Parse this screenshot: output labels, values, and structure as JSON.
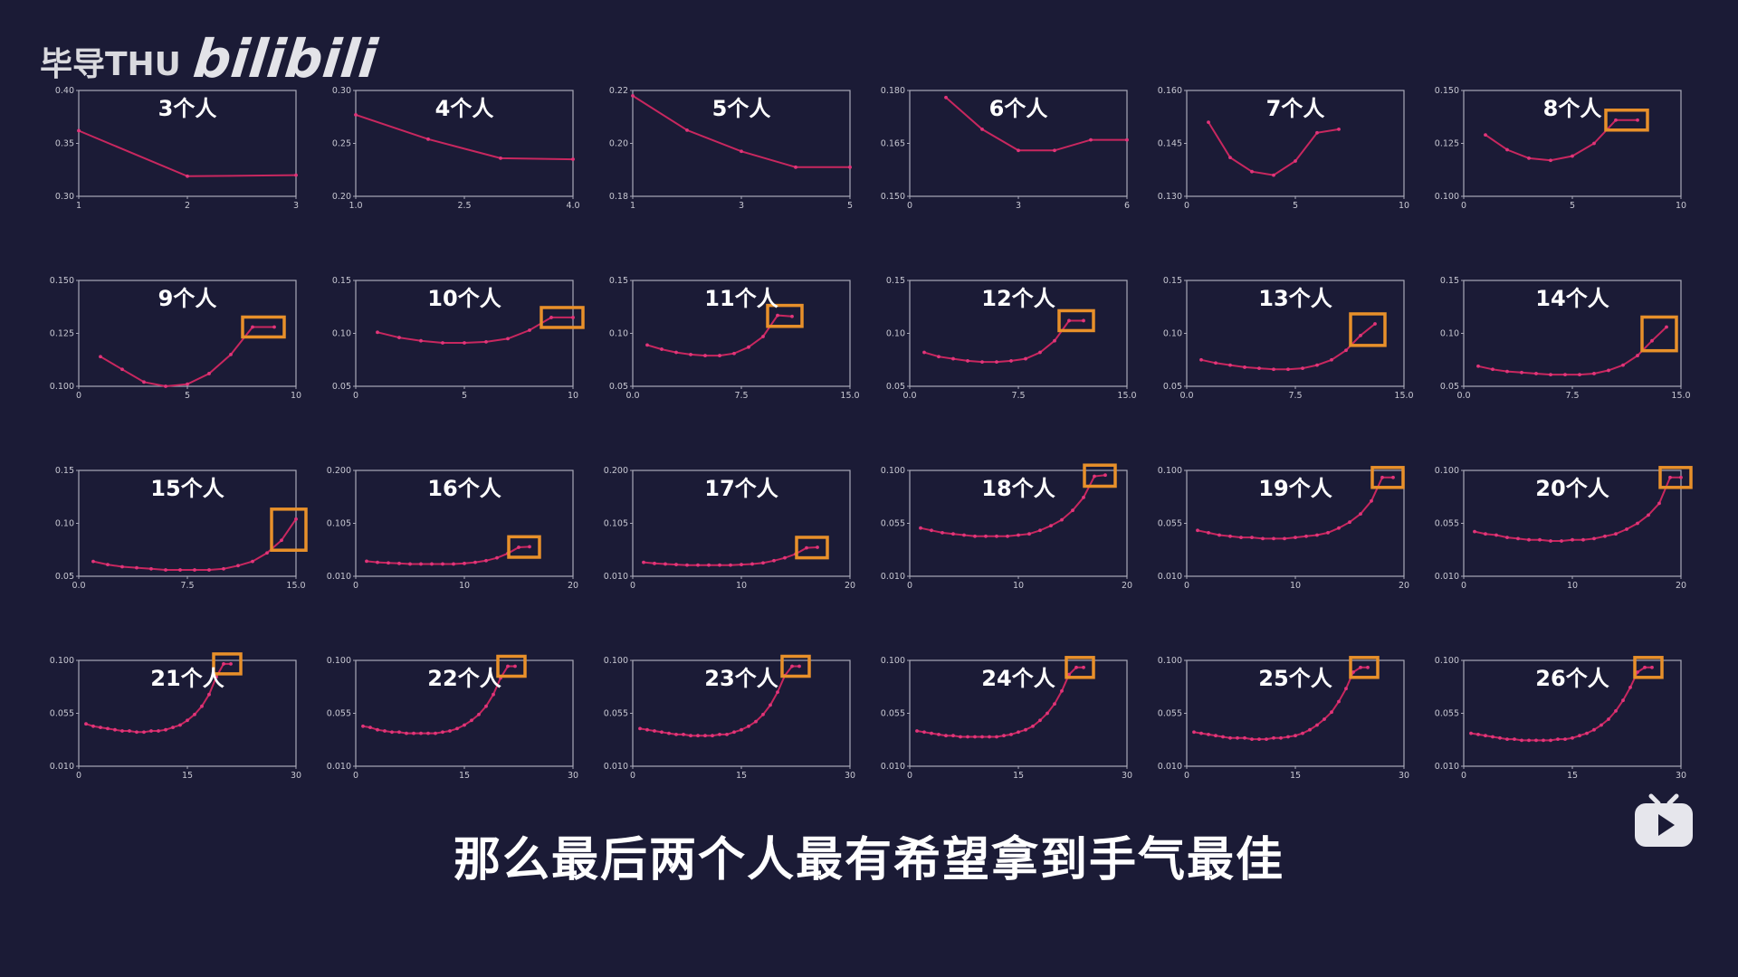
{
  "watermark": {
    "channel": "毕导THU",
    "logo": "bilibili"
  },
  "caption": "那么最后两个人最有希望拿到手气最佳",
  "colors": {
    "background": "#1b1b36",
    "line": "#c8275f",
    "highlight_box": "#e8902a",
    "axes": "#a9a9b8",
    "text": "#ffffff"
  },
  "icons": {
    "corner": "bilibili-tv-play-icon"
  },
  "chart_data": [
    {
      "type": "line",
      "title": "3个人",
      "x": [
        1,
        2,
        3
      ],
      "y": [
        0.362,
        0.319,
        0.32
      ],
      "xlim": [
        1,
        3
      ],
      "ylim": [
        0.3,
        0.4
      ],
      "xticks": [
        "1",
        "2",
        "3"
      ],
      "yticks": [
        "0.30",
        "0.35",
        "0.40"
      ],
      "highlight": null
    },
    {
      "type": "line",
      "title": "4个人",
      "x": [
        1,
        2,
        3,
        4
      ],
      "y": [
        0.277,
        0.254,
        0.236,
        0.235
      ],
      "xlim": [
        1,
        4
      ],
      "ylim": [
        0.2,
        0.3
      ],
      "xticks": [
        "1.0",
        "2.5",
        "4.0"
      ],
      "yticks": [
        "0.20",
        "0.25",
        "0.30"
      ],
      "highlight": null
    },
    {
      "type": "line",
      "title": "5个人",
      "x": [
        1,
        2,
        3,
        4,
        5
      ],
      "y": [
        0.218,
        0.205,
        0.197,
        0.191,
        0.191
      ],
      "xlim": [
        1,
        5
      ],
      "ylim": [
        0.18,
        0.22
      ],
      "xticks": [
        "1",
        "3",
        "5"
      ],
      "yticks": [
        "0.18",
        "0.20",
        "0.22"
      ],
      "highlight": null
    },
    {
      "type": "line",
      "title": "6个人",
      "x": [
        1,
        2,
        3,
        4,
        5,
        6
      ],
      "y": [
        0.178,
        0.169,
        0.163,
        0.163,
        0.166,
        0.166
      ],
      "xlim": [
        0,
        6
      ],
      "ylim": [
        0.15,
        0.18
      ],
      "xticks": [
        "0",
        "3",
        "6"
      ],
      "yticks": [
        "0.150",
        "0.165",
        "0.180"
      ],
      "highlight": null
    },
    {
      "type": "line",
      "title": "7个人",
      "x": [
        1,
        2,
        3,
        4,
        5,
        6,
        7
      ],
      "y": [
        0.151,
        0.141,
        0.137,
        0.136,
        0.14,
        0.148,
        0.149
      ],
      "xlim": [
        0,
        10
      ],
      "ylim": [
        0.13,
        0.16
      ],
      "xticks": [
        "0",
        "5",
        "10"
      ],
      "yticks": [
        "0.130",
        "0.145",
        "0.160"
      ],
      "highlight": null
    },
    {
      "type": "line",
      "title": "8个人",
      "x": [
        1,
        2,
        3,
        4,
        5,
        6,
        7,
        8
      ],
      "y": [
        0.129,
        0.122,
        0.118,
        0.117,
        0.119,
        0.125,
        0.136,
        0.136
      ],
      "xlim": [
        0,
        10
      ],
      "ylim": [
        0.1,
        0.15
      ],
      "xticks": [
        "0",
        "5",
        "10"
      ],
      "yticks": [
        "0.100",
        "0.125",
        "0.150"
      ],
      "highlight": [
        7,
        8
      ]
    },
    {
      "type": "line",
      "title": "9个人",
      "x": [
        1,
        2,
        3,
        4,
        5,
        6,
        7,
        8,
        9
      ],
      "y": [
        0.114,
        0.108,
        0.102,
        0.1,
        0.101,
        0.106,
        0.115,
        0.128,
        0.128
      ],
      "xlim": [
        0,
        10
      ],
      "ylim": [
        0.1,
        0.15
      ],
      "xticks": [
        "0",
        "5",
        "10"
      ],
      "yticks": [
        "0.100",
        "0.125",
        "0.150"
      ],
      "highlight": [
        8,
        9
      ]
    },
    {
      "type": "line",
      "title": "10个人",
      "x": [
        1,
        2,
        3,
        4,
        5,
        6,
        7,
        8,
        9,
        10
      ],
      "y": [
        0.101,
        0.096,
        0.093,
        0.091,
        0.091,
        0.092,
        0.095,
        0.103,
        0.115,
        0.115
      ],
      "xlim": [
        0,
        10
      ],
      "ylim": [
        0.05,
        0.15
      ],
      "xticks": [
        "0",
        "5",
        "10"
      ],
      "yticks": [
        "0.05",
        "0.10",
        "0.15"
      ],
      "highlight": [
        9,
        10
      ]
    },
    {
      "type": "line",
      "title": "11个人",
      "x": [
        1,
        2,
        3,
        4,
        5,
        6,
        7,
        8,
        9,
        10,
        11
      ],
      "y": [
        0.089,
        0.085,
        0.082,
        0.08,
        0.079,
        0.079,
        0.081,
        0.087,
        0.097,
        0.117,
        0.116
      ],
      "xlim": [
        0,
        15
      ],
      "ylim": [
        0.05,
        0.15
      ],
      "xticks": [
        "0.0",
        "7.5",
        "15.0"
      ],
      "yticks": [
        "0.05",
        "0.10",
        "0.15"
      ],
      "highlight": [
        10,
        11
      ]
    },
    {
      "type": "line",
      "title": "12个人",
      "x": [
        1,
        2,
        3,
        4,
        5,
        6,
        7,
        8,
        9,
        10,
        11,
        12
      ],
      "y": [
        0.082,
        0.078,
        0.076,
        0.074,
        0.073,
        0.073,
        0.074,
        0.076,
        0.082,
        0.093,
        0.112,
        0.112
      ],
      "xlim": [
        0,
        15
      ],
      "ylim": [
        0.05,
        0.15
      ],
      "xticks": [
        "0.0",
        "7.5",
        "15.0"
      ],
      "yticks": [
        "0.05",
        "0.10",
        "0.15"
      ],
      "highlight": [
        11,
        12
      ]
    },
    {
      "type": "line",
      "title": "13个人",
      "x": [
        1,
        2,
        3,
        4,
        5,
        6,
        7,
        8,
        9,
        10,
        11,
        12,
        13
      ],
      "y": [
        0.075,
        0.072,
        0.07,
        0.068,
        0.067,
        0.066,
        0.066,
        0.067,
        0.07,
        0.075,
        0.084,
        0.098,
        0.109
      ],
      "xlim": [
        0,
        15
      ],
      "ylim": [
        0.05,
        0.15
      ],
      "xticks": [
        "0.0",
        "7.5",
        "15.0"
      ],
      "yticks": [
        "0.05",
        "0.10",
        "0.15"
      ],
      "highlight": [
        12,
        13
      ]
    },
    {
      "type": "line",
      "title": "14个人",
      "x": [
        1,
        2,
        3,
        4,
        5,
        6,
        7,
        8,
        9,
        10,
        11,
        12,
        13,
        14
      ],
      "y": [
        0.069,
        0.066,
        0.064,
        0.063,
        0.062,
        0.061,
        0.061,
        0.061,
        0.062,
        0.065,
        0.07,
        0.079,
        0.093,
        0.106
      ],
      "xlim": [
        0,
        15
      ],
      "ylim": [
        0.05,
        0.15
      ],
      "xticks": [
        "0.0",
        "7.5",
        "15.0"
      ],
      "yticks": [
        "0.05",
        "0.10",
        "0.15"
      ],
      "highlight": [
        13,
        14
      ]
    },
    {
      "type": "line",
      "title": "15个人",
      "x": [
        1,
        2,
        3,
        4,
        5,
        6,
        7,
        8,
        9,
        10,
        11,
        12,
        13,
        14,
        15
      ],
      "y": [
        0.064,
        0.061,
        0.059,
        0.058,
        0.057,
        0.056,
        0.056,
        0.056,
        0.056,
        0.057,
        0.06,
        0.064,
        0.072,
        0.084,
        0.104
      ],
      "xlim": [
        0,
        15
      ],
      "ylim": [
        0.05,
        0.15
      ],
      "xticks": [
        "0.0",
        "7.5",
        "15.0"
      ],
      "yticks": [
        "0.05",
        "0.10",
        "0.15"
      ],
      "highlight": [
        14,
        15
      ]
    },
    {
      "type": "line",
      "title": "16个人",
      "x": [
        1,
        2,
        3,
        4,
        5,
        6,
        7,
        8,
        9,
        10,
        11,
        12,
        13,
        14,
        15,
        16
      ],
      "y": [
        0.037,
        0.035,
        0.034,
        0.033,
        0.032,
        0.032,
        0.032,
        0.032,
        0.032,
        0.033,
        0.035,
        0.038,
        0.043,
        0.051,
        0.062,
        0.063
      ],
      "xlim": [
        0,
        20
      ],
      "ylim": [
        0.01,
        0.2
      ],
      "xticks": [
        "0",
        "10",
        "20"
      ],
      "yticks": [
        "0.010",
        "0.105",
        "0.200"
      ],
      "highlight": [
        15,
        16
      ]
    },
    {
      "type": "line",
      "title": "17个人",
      "x": [
        1,
        2,
        3,
        4,
        5,
        6,
        7,
        8,
        9,
        10,
        11,
        12,
        13,
        14,
        15,
        16,
        17
      ],
      "y": [
        0.035,
        0.033,
        0.032,
        0.031,
        0.03,
        0.03,
        0.03,
        0.03,
        0.03,
        0.031,
        0.032,
        0.034,
        0.038,
        0.043,
        0.05,
        0.061,
        0.062
      ],
      "xlim": [
        0,
        20
      ],
      "ylim": [
        0.01,
        0.2
      ],
      "xticks": [
        "0",
        "10",
        "20"
      ],
      "yticks": [
        "0.010",
        "0.105",
        "0.200"
      ],
      "highlight": [
        16,
        17
      ]
    },
    {
      "type": "line",
      "title": "18个人",
      "x": [
        1,
        2,
        3,
        4,
        5,
        6,
        7,
        8,
        9,
        10,
        11,
        12,
        13,
        14,
        15,
        16,
        17,
        18
      ],
      "y": [
        0.051,
        0.049,
        0.047,
        0.046,
        0.045,
        0.044,
        0.044,
        0.044,
        0.044,
        0.045,
        0.046,
        0.049,
        0.053,
        0.058,
        0.066,
        0.077,
        0.095,
        0.096
      ],
      "xlim": [
        0,
        20
      ],
      "ylim": [
        0.01,
        0.1
      ],
      "xticks": [
        "0",
        "10",
        "20"
      ],
      "yticks": [
        "0.010",
        "0.055",
        "0.100"
      ],
      "highlight": [
        17,
        18
      ]
    },
    {
      "type": "line",
      "title": "19个人",
      "x": [
        1,
        2,
        3,
        4,
        5,
        6,
        7,
        8,
        9,
        10,
        11,
        12,
        13,
        14,
        15,
        16,
        17,
        18,
        19
      ],
      "y": [
        0.049,
        0.047,
        0.045,
        0.044,
        0.043,
        0.043,
        0.042,
        0.042,
        0.042,
        0.043,
        0.044,
        0.045,
        0.047,
        0.051,
        0.056,
        0.063,
        0.074,
        0.094,
        0.094
      ],
      "xlim": [
        0,
        20
      ],
      "ylim": [
        0.01,
        0.1
      ],
      "xticks": [
        "0",
        "10",
        "20"
      ],
      "yticks": [
        "0.010",
        "0.055",
        "0.100"
      ],
      "highlight": [
        18,
        19
      ]
    },
    {
      "type": "line",
      "title": "20个人",
      "x": [
        1,
        2,
        3,
        4,
        5,
        6,
        7,
        8,
        9,
        10,
        11,
        12,
        13,
        14,
        15,
        16,
        17,
        18,
        19,
        20
      ],
      "y": [
        0.048,
        0.046,
        0.045,
        0.043,
        0.042,
        0.041,
        0.041,
        0.04,
        0.04,
        0.041,
        0.041,
        0.042,
        0.044,
        0.046,
        0.05,
        0.055,
        0.062,
        0.072,
        0.094,
        0.094
      ],
      "xlim": [
        0,
        20
      ],
      "ylim": [
        0.01,
        0.1
      ],
      "xticks": [
        "0",
        "10",
        "20"
      ],
      "yticks": [
        "0.010",
        "0.055",
        "0.100"
      ],
      "highlight": [
        19,
        20
      ]
    },
    {
      "type": "line",
      "title": "21个人",
      "x": [
        1,
        2,
        3,
        4,
        5,
        6,
        7,
        8,
        9,
        10,
        11,
        12,
        13,
        14,
        15,
        16,
        17,
        18,
        19,
        20,
        21
      ],
      "y": [
        0.046,
        0.044,
        0.043,
        0.042,
        0.041,
        0.04,
        0.04,
        0.039,
        0.039,
        0.04,
        0.04,
        0.041,
        0.043,
        0.045,
        0.049,
        0.054,
        0.061,
        0.071,
        0.086,
        0.097,
        0.097
      ],
      "xlim": [
        0,
        30
      ],
      "ylim": [
        0.01,
        0.1
      ],
      "xticks": [
        "0",
        "15",
        "30"
      ],
      "yticks": [
        "0.010",
        "0.055",
        "0.100"
      ],
      "highlight": [
        20,
        21
      ]
    },
    {
      "type": "line",
      "title": "22个人",
      "x": [
        1,
        2,
        3,
        4,
        5,
        6,
        7,
        8,
        9,
        10,
        11,
        12,
        13,
        14,
        15,
        16,
        17,
        18,
        19,
        20,
        21,
        22
      ],
      "y": [
        0.044,
        0.043,
        0.041,
        0.04,
        0.039,
        0.039,
        0.038,
        0.038,
        0.038,
        0.038,
        0.038,
        0.039,
        0.04,
        0.042,
        0.045,
        0.049,
        0.054,
        0.061,
        0.071,
        0.085,
        0.095,
        0.095
      ],
      "xlim": [
        0,
        30
      ],
      "ylim": [
        0.01,
        0.1
      ],
      "xticks": [
        "0",
        "15",
        "30"
      ],
      "yticks": [
        "0.010",
        "0.055",
        "0.100"
      ],
      "highlight": [
        21,
        22
      ]
    },
    {
      "type": "line",
      "title": "23个人",
      "x": [
        1,
        2,
        3,
        4,
        5,
        6,
        7,
        8,
        9,
        10,
        11,
        12,
        13,
        14,
        15,
        16,
        17,
        18,
        19,
        20,
        21,
        22,
        23
      ],
      "y": [
        0.042,
        0.041,
        0.04,
        0.039,
        0.038,
        0.037,
        0.037,
        0.036,
        0.036,
        0.036,
        0.036,
        0.037,
        0.037,
        0.039,
        0.041,
        0.044,
        0.048,
        0.054,
        0.062,
        0.073,
        0.087,
        0.095,
        0.095
      ],
      "xlim": [
        0,
        30
      ],
      "ylim": [
        0.01,
        0.1
      ],
      "xticks": [
        "0",
        "15",
        "30"
      ],
      "yticks": [
        "0.010",
        "0.055",
        "0.100"
      ],
      "highlight": [
        22,
        23
      ]
    },
    {
      "type": "line",
      "title": "24个人",
      "x": [
        1,
        2,
        3,
        4,
        5,
        6,
        7,
        8,
        9,
        10,
        11,
        12,
        13,
        14,
        15,
        16,
        17,
        18,
        19,
        20,
        21,
        22,
        23,
        24
      ],
      "y": [
        0.04,
        0.039,
        0.038,
        0.037,
        0.036,
        0.036,
        0.035,
        0.035,
        0.035,
        0.035,
        0.035,
        0.035,
        0.036,
        0.037,
        0.039,
        0.041,
        0.044,
        0.049,
        0.055,
        0.063,
        0.074,
        0.088,
        0.094,
        0.094
      ],
      "xlim": [
        0,
        30
      ],
      "ylim": [
        0.01,
        0.1
      ],
      "xticks": [
        "0",
        "15",
        "30"
      ],
      "yticks": [
        "0.010",
        "0.055",
        "0.100"
      ],
      "highlight": [
        23,
        24
      ]
    },
    {
      "type": "line",
      "title": "25个人",
      "x": [
        1,
        2,
        3,
        4,
        5,
        6,
        7,
        8,
        9,
        10,
        11,
        12,
        13,
        14,
        15,
        16,
        17,
        18,
        19,
        20,
        21,
        22,
        23,
        24,
        25
      ],
      "y": [
        0.039,
        0.038,
        0.037,
        0.036,
        0.035,
        0.034,
        0.034,
        0.034,
        0.033,
        0.033,
        0.033,
        0.034,
        0.034,
        0.035,
        0.036,
        0.038,
        0.041,
        0.045,
        0.05,
        0.056,
        0.065,
        0.076,
        0.09,
        0.094,
        0.094
      ],
      "xlim": [
        0,
        30
      ],
      "ylim": [
        0.01,
        0.1
      ],
      "xticks": [
        "0",
        "15",
        "30"
      ],
      "yticks": [
        "0.010",
        "0.055",
        "0.100"
      ],
      "highlight": [
        24,
        25
      ]
    },
    {
      "type": "line",
      "title": "26个人",
      "x": [
        1,
        2,
        3,
        4,
        5,
        6,
        7,
        8,
        9,
        10,
        11,
        12,
        13,
        14,
        15,
        16,
        17,
        18,
        19,
        20,
        21,
        22,
        23,
        24,
        25,
        26
      ],
      "y": [
        0.038,
        0.037,
        0.036,
        0.035,
        0.034,
        0.033,
        0.033,
        0.032,
        0.032,
        0.032,
        0.032,
        0.032,
        0.033,
        0.033,
        0.034,
        0.036,
        0.038,
        0.041,
        0.045,
        0.05,
        0.057,
        0.066,
        0.077,
        0.09,
        0.094,
        0.094
      ],
      "xlim": [
        0,
        30
      ],
      "ylim": [
        0.01,
        0.1
      ],
      "xticks": [
        "0",
        "15",
        "30"
      ],
      "yticks": [
        "0.010",
        "0.055",
        "0.100"
      ],
      "highlight": [
        25,
        26
      ]
    }
  ]
}
